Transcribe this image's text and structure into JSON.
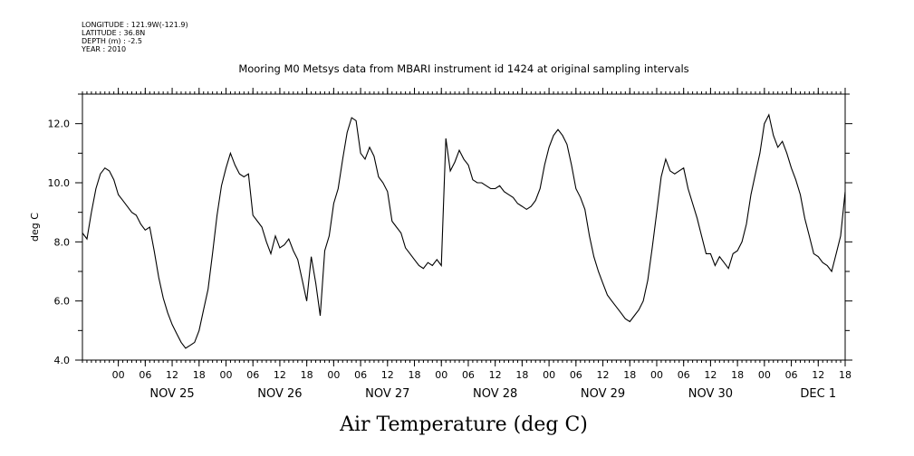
{
  "header": {
    "longitude": "LONGITUDE : 121.9W(-121.9)",
    "latitude": "LATITUDE : 36.8N",
    "depth": "DEPTH (m) : -2.5",
    "year": "YEAR : 2010"
  },
  "chart_data": {
    "type": "line",
    "title": "Mooring M0 Metsys data from MBARI instrument id 1424 at original sampling intervals",
    "xlabel": "Air Temperature (deg C)",
    "ylabel": "deg C",
    "ylim": [
      4.0,
      13.0
    ],
    "xlim_hours": [
      -8,
      162
    ],
    "yticks": [
      "4.0",
      "6.0",
      "8.0",
      "10.0",
      "12.0"
    ],
    "hour_tick_labels": [
      "00",
      "06",
      "12",
      "18"
    ],
    "day_labels": [
      "NOV 25",
      "NOV 26",
      "NOV 27",
      "NOV 28",
      "NOV 29",
      "NOV 30",
      "DEC  1"
    ],
    "grid": false,
    "series": [
      {
        "points": [
          [
            -8,
            8.3
          ],
          [
            -7,
            8.1
          ],
          [
            -6,
            9.0
          ],
          [
            -5,
            9.8
          ],
          [
            -4,
            10.3
          ],
          [
            -3,
            10.5
          ],
          [
            -2,
            10.4
          ],
          [
            -1,
            10.1
          ],
          [
            0,
            9.6
          ],
          [
            1,
            9.4
          ],
          [
            2,
            9.2
          ],
          [
            3,
            9.0
          ],
          [
            4,
            8.9
          ],
          [
            5,
            8.6
          ],
          [
            6,
            8.4
          ],
          [
            7,
            8.5
          ],
          [
            8,
            7.7
          ],
          [
            9,
            6.8
          ],
          [
            10,
            6.1
          ],
          [
            11,
            5.6
          ],
          [
            12,
            5.2
          ],
          [
            13,
            4.9
          ],
          [
            14,
            4.6
          ],
          [
            15,
            4.4
          ],
          [
            16,
            4.5
          ],
          [
            17,
            4.6
          ],
          [
            18,
            5.0
          ],
          [
            19,
            5.7
          ],
          [
            20,
            6.4
          ],
          [
            21,
            7.6
          ],
          [
            22,
            8.9
          ],
          [
            23,
            9.9
          ],
          [
            24,
            10.5
          ],
          [
            25,
            11.0
          ],
          [
            26,
            10.6
          ],
          [
            27,
            10.3
          ],
          [
            28,
            10.2
          ],
          [
            29,
            10.3
          ],
          [
            30,
            8.9
          ],
          [
            31,
            8.7
          ],
          [
            32,
            8.5
          ],
          [
            33,
            8.0
          ],
          [
            34,
            7.6
          ],
          [
            35,
            8.2
          ],
          [
            36,
            7.8
          ],
          [
            37,
            7.9
          ],
          [
            38,
            8.1
          ],
          [
            39,
            7.7
          ],
          [
            40,
            7.4
          ],
          [
            41,
            6.7
          ],
          [
            42,
            6.0
          ],
          [
            43,
            7.5
          ],
          [
            44,
            6.6
          ],
          [
            45,
            5.5
          ],
          [
            46,
            7.7
          ],
          [
            47,
            8.2
          ],
          [
            48,
            9.3
          ],
          [
            49,
            9.8
          ],
          [
            50,
            10.8
          ],
          [
            51,
            11.7
          ],
          [
            52,
            12.2
          ],
          [
            53,
            12.1
          ],
          [
            54,
            11.0
          ],
          [
            55,
            10.8
          ],
          [
            56,
            11.2
          ],
          [
            57,
            10.9
          ],
          [
            58,
            10.2
          ],
          [
            59,
            10.0
          ],
          [
            60,
            9.7
          ],
          [
            61,
            8.7
          ],
          [
            62,
            8.5
          ],
          [
            63,
            8.3
          ],
          [
            64,
            7.8
          ],
          [
            65,
            7.6
          ],
          [
            66,
            7.4
          ],
          [
            67,
            7.2
          ],
          [
            68,
            7.1
          ],
          [
            69,
            7.3
          ],
          [
            70,
            7.2
          ],
          [
            71,
            7.4
          ],
          [
            72,
            7.2
          ],
          [
            73,
            11.5
          ],
          [
            74,
            10.4
          ],
          [
            75,
            10.7
          ],
          [
            76,
            11.1
          ],
          [
            77,
            10.8
          ],
          [
            78,
            10.6
          ],
          [
            79,
            10.1
          ],
          [
            80,
            10.0
          ],
          [
            81,
            10.0
          ],
          [
            82,
            9.9
          ],
          [
            83,
            9.8
          ],
          [
            84,
            9.8
          ],
          [
            85,
            9.9
          ],
          [
            86,
            9.7
          ],
          [
            87,
            9.6
          ],
          [
            88,
            9.5
          ],
          [
            89,
            9.3
          ],
          [
            90,
            9.2
          ],
          [
            91,
            9.1
          ],
          [
            92,
            9.2
          ],
          [
            93,
            9.4
          ],
          [
            94,
            9.8
          ],
          [
            95,
            10.6
          ],
          [
            96,
            11.2
          ],
          [
            97,
            11.6
          ],
          [
            98,
            11.8
          ],
          [
            99,
            11.6
          ],
          [
            100,
            11.3
          ],
          [
            101,
            10.6
          ],
          [
            102,
            9.8
          ],
          [
            103,
            9.5
          ],
          [
            104,
            9.1
          ],
          [
            105,
            8.2
          ],
          [
            106,
            7.5
          ],
          [
            107,
            7.0
          ],
          [
            108,
            6.6
          ],
          [
            109,
            6.2
          ],
          [
            110,
            6.0
          ],
          [
            111,
            5.8
          ],
          [
            112,
            5.6
          ],
          [
            113,
            5.4
          ],
          [
            114,
            5.3
          ],
          [
            115,
            5.5
          ],
          [
            116,
            5.7
          ],
          [
            117,
            6.0
          ],
          [
            118,
            6.7
          ],
          [
            119,
            7.8
          ],
          [
            120,
            9.0
          ],
          [
            121,
            10.2
          ],
          [
            122,
            10.8
          ],
          [
            123,
            10.4
          ],
          [
            124,
            10.3
          ],
          [
            125,
            10.4
          ],
          [
            126,
            10.5
          ],
          [
            127,
            9.8
          ],
          [
            128,
            9.3
          ],
          [
            129,
            8.8
          ],
          [
            130,
            8.2
          ],
          [
            131,
            7.6
          ],
          [
            132,
            7.6
          ],
          [
            133,
            7.2
          ],
          [
            134,
            7.5
          ],
          [
            135,
            7.3
          ],
          [
            136,
            7.1
          ],
          [
            137,
            7.6
          ],
          [
            138,
            7.7
          ],
          [
            139,
            8.0
          ],
          [
            140,
            8.6
          ],
          [
            141,
            9.6
          ],
          [
            142,
            10.3
          ],
          [
            143,
            11.0
          ],
          [
            144,
            12.0
          ],
          [
            145,
            12.3
          ],
          [
            146,
            11.6
          ],
          [
            147,
            11.2
          ],
          [
            148,
            11.4
          ],
          [
            149,
            11.0
          ],
          [
            150,
            10.5
          ],
          [
            151,
            10.1
          ],
          [
            152,
            9.6
          ],
          [
            153,
            8.8
          ],
          [
            154,
            8.2
          ],
          [
            155,
            7.6
          ],
          [
            156,
            7.5
          ],
          [
            157,
            7.3
          ],
          [
            158,
            7.2
          ],
          [
            159,
            7.0
          ],
          [
            160,
            7.6
          ],
          [
            161,
            8.2
          ],
          [
            162,
            9.7
          ]
        ]
      }
    ]
  }
}
